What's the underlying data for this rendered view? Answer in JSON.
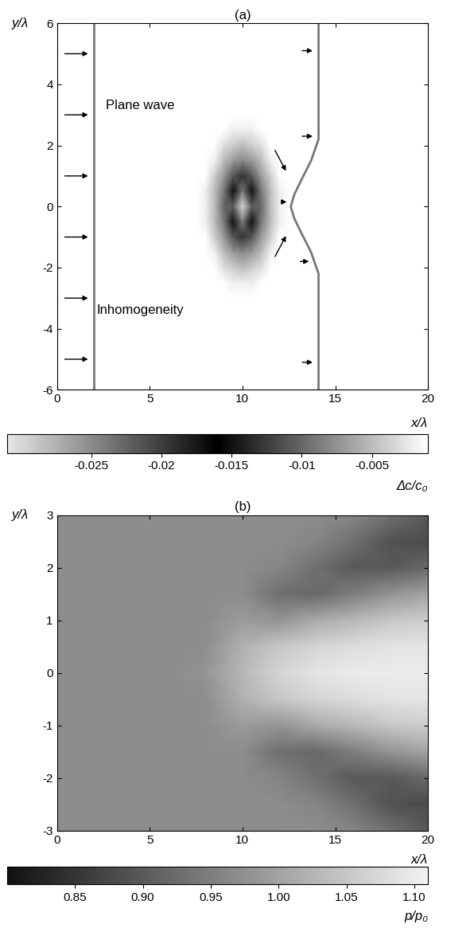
{
  "chart_data": [
    {
      "type": "heatmap",
      "title": "(a)",
      "x_label": "x/λ",
      "y_label": "y/λ",
      "xlim": [
        0,
        20
      ],
      "ylim": [
        -6,
        6
      ],
      "xticks": [
        0,
        5,
        10,
        15,
        20
      ],
      "yticks": [
        -6,
        -4,
        -2,
        0,
        2,
        4,
        6
      ],
      "annotations": [
        "Plane wave",
        "Inhomogeneity"
      ],
      "cells": {
        "x": [
          7,
          7.5,
          8,
          8.5,
          9,
          9.5,
          10,
          10.5,
          11,
          11.5,
          12,
          12.5,
          13
        ],
        "y": [
          -3,
          -2.5,
          -2,
          -1.5,
          -1,
          -0.5,
          0,
          0.5,
          1,
          1.5,
          2,
          2.5,
          3
        ],
        "values": [
          [
            0,
            0,
            0,
            0,
            0,
            0,
            -0.001,
            0,
            0,
            0,
            0,
            0,
            0
          ],
          [
            0,
            0,
            0,
            0,
            -0.001,
            -0.002,
            -0.002,
            -0.002,
            -0.001,
            0,
            0,
            0,
            0
          ],
          [
            0,
            0,
            0,
            -0.001,
            -0.003,
            -0.004,
            -0.005,
            -0.004,
            -0.003,
            -0.001,
            0,
            0,
            0
          ],
          [
            0,
            0,
            -0.001,
            -0.002,
            -0.005,
            -0.007,
            -0.008,
            -0.007,
            -0.005,
            -0.002,
            -0.001,
            0,
            0
          ],
          [
            0,
            0,
            -0.001,
            -0.004,
            -0.007,
            -0.011,
            -0.013,
            -0.011,
            -0.007,
            -0.004,
            -0.001,
            0,
            0
          ],
          [
            0,
            0,
            -0.002,
            -0.005,
            -0.009,
            -0.017,
            -0.024,
            -0.017,
            -0.009,
            -0.005,
            -0.002,
            0,
            0
          ],
          [
            0,
            0,
            -0.002,
            -0.005,
            -0.01,
            -0.022,
            -0.03,
            -0.022,
            -0.01,
            -0.005,
            -0.002,
            0,
            0
          ],
          [
            0,
            0,
            -0.002,
            -0.005,
            -0.009,
            -0.017,
            -0.024,
            -0.017,
            -0.009,
            -0.005,
            -0.002,
            0,
            0
          ],
          [
            0,
            0,
            -0.001,
            -0.004,
            -0.007,
            -0.011,
            -0.013,
            -0.011,
            -0.007,
            -0.004,
            -0.001,
            0,
            0
          ],
          [
            0,
            0,
            -0.001,
            -0.002,
            -0.005,
            -0.007,
            -0.008,
            -0.007,
            -0.005,
            -0.002,
            -0.001,
            0,
            0
          ],
          [
            0,
            0,
            0,
            -0.001,
            -0.003,
            -0.004,
            -0.005,
            -0.004,
            -0.003,
            -0.001,
            0,
            0,
            0
          ],
          [
            0,
            0,
            0,
            0,
            -0.001,
            -0.002,
            -0.002,
            -0.002,
            -0.001,
            0,
            0,
            0,
            0
          ],
          [
            0,
            0,
            0,
            0,
            0,
            0,
            -0.001,
            0,
            0,
            0,
            0,
            0,
            0
          ]
        ]
      },
      "colorbar": {
        "label": "Δc/c₀",
        "range": [
          -0.031,
          -0.001
        ],
        "ticks": [
          -0.025,
          -0.02,
          -0.015,
          -0.01,
          -0.005
        ]
      },
      "wavefronts": [
        {
          "x": [
            2,
            2
          ],
          "y": [
            -6,
            6
          ]
        },
        {
          "x": [
            14.1,
            14.1,
            13.7,
            13.2,
            12.8,
            12.6,
            12.8,
            13.2,
            13.7,
            14.1,
            14.1
          ],
          "y": [
            -6,
            -2.2,
            -1.5,
            -0.9,
            -0.4,
            0,
            0.4,
            0.9,
            1.5,
            2.2,
            6
          ]
        }
      ],
      "arrows": [
        [
          0.3,
          5,
          1.8,
          5
        ],
        [
          0.3,
          3,
          1.8,
          3
        ],
        [
          0.3,
          1,
          1.8,
          1
        ],
        [
          0.3,
          -1,
          1.8,
          -1
        ],
        [
          0.3,
          -3,
          1.8,
          -3
        ],
        [
          0.3,
          -5,
          1.8,
          -5
        ],
        [
          13.1,
          5.1,
          13.9,
          5.1
        ],
        [
          13.1,
          2.3,
          13.9,
          2.3
        ],
        [
          11.7,
          1.9,
          12.4,
          1.1
        ],
        [
          12.0,
          0.15,
          12.5,
          0.15
        ],
        [
          11.7,
          -1.7,
          12.4,
          -0.9
        ],
        [
          13.0,
          -1.8,
          13.7,
          -1.8
        ],
        [
          13.1,
          -5.1,
          13.9,
          -5.1
        ]
      ]
    },
    {
      "type": "heatmap",
      "title": "(b)",
      "x_label": "x/λ",
      "y_label": "y/λ",
      "xlim": [
        0,
        20
      ],
      "ylim": [
        -3,
        3
      ],
      "xticks": [
        0,
        5,
        10,
        15,
        20
      ],
      "yticks": [
        -3,
        -2,
        -1,
        0,
        1,
        2,
        3
      ],
      "cells": {
        "x": [
          0,
          2,
          4,
          6,
          8,
          10,
          12,
          14,
          16,
          18,
          20
        ],
        "y": [
          -3,
          -2.5,
          -2,
          -1.5,
          -1,
          -0.5,
          0,
          0.5,
          1,
          1.5,
          2,
          2.5,
          3
        ],
        "values": [
          [
            0.97,
            0.97,
            0.97,
            0.97,
            0.97,
            0.97,
            0.97,
            0.97,
            0.96,
            0.93,
            0.9
          ],
          [
            0.97,
            0.97,
            0.97,
            0.97,
            0.97,
            0.97,
            0.97,
            0.96,
            0.93,
            0.89,
            0.88
          ],
          [
            0.97,
            0.97,
            0.97,
            0.97,
            0.97,
            0.97,
            0.96,
            0.93,
            0.9,
            0.9,
            0.92
          ],
          [
            0.97,
            0.97,
            0.97,
            0.97,
            0.97,
            0.97,
            0.93,
            0.92,
            0.95,
            0.98,
            1.0
          ],
          [
            0.97,
            0.97,
            0.97,
            0.97,
            0.97,
            0.99,
            0.98,
            1.01,
            1.03,
            1.05,
            1.06
          ],
          [
            0.97,
            0.97,
            0.97,
            0.97,
            0.97,
            1.02,
            1.05,
            1.07,
            1.08,
            1.09,
            1.09
          ],
          [
            0.97,
            0.97,
            0.97,
            0.97,
            0.98,
            1.03,
            1.07,
            1.09,
            1.1,
            1.1,
            1.1
          ],
          [
            0.97,
            0.97,
            0.97,
            0.97,
            0.97,
            1.02,
            1.05,
            1.07,
            1.08,
            1.09,
            1.09
          ],
          [
            0.97,
            0.97,
            0.97,
            0.97,
            0.97,
            0.99,
            0.98,
            1.01,
            1.03,
            1.05,
            1.06
          ],
          [
            0.97,
            0.97,
            0.97,
            0.97,
            0.97,
            0.97,
            0.93,
            0.92,
            0.95,
            0.98,
            1.0
          ],
          [
            0.97,
            0.97,
            0.97,
            0.97,
            0.97,
            0.97,
            0.96,
            0.93,
            0.9,
            0.9,
            0.92
          ],
          [
            0.97,
            0.97,
            0.97,
            0.97,
            0.97,
            0.97,
            0.97,
            0.96,
            0.93,
            0.89,
            0.88
          ],
          [
            0.97,
            0.97,
            0.97,
            0.97,
            0.97,
            0.97,
            0.97,
            0.97,
            0.96,
            0.93,
            0.9
          ]
        ]
      },
      "colorbar": {
        "label": "p/p₀",
        "range": [
          0.8,
          1.11
        ],
        "ticks": [
          0.85,
          {
            "value": 0.9,
            "label": "0.90"
          },
          0.95,
          {
            "value": 1.0,
            "label": "1.00"
          },
          1.05,
          {
            "value": 1.1,
            "label": "1.10"
          }
        ]
      }
    }
  ]
}
